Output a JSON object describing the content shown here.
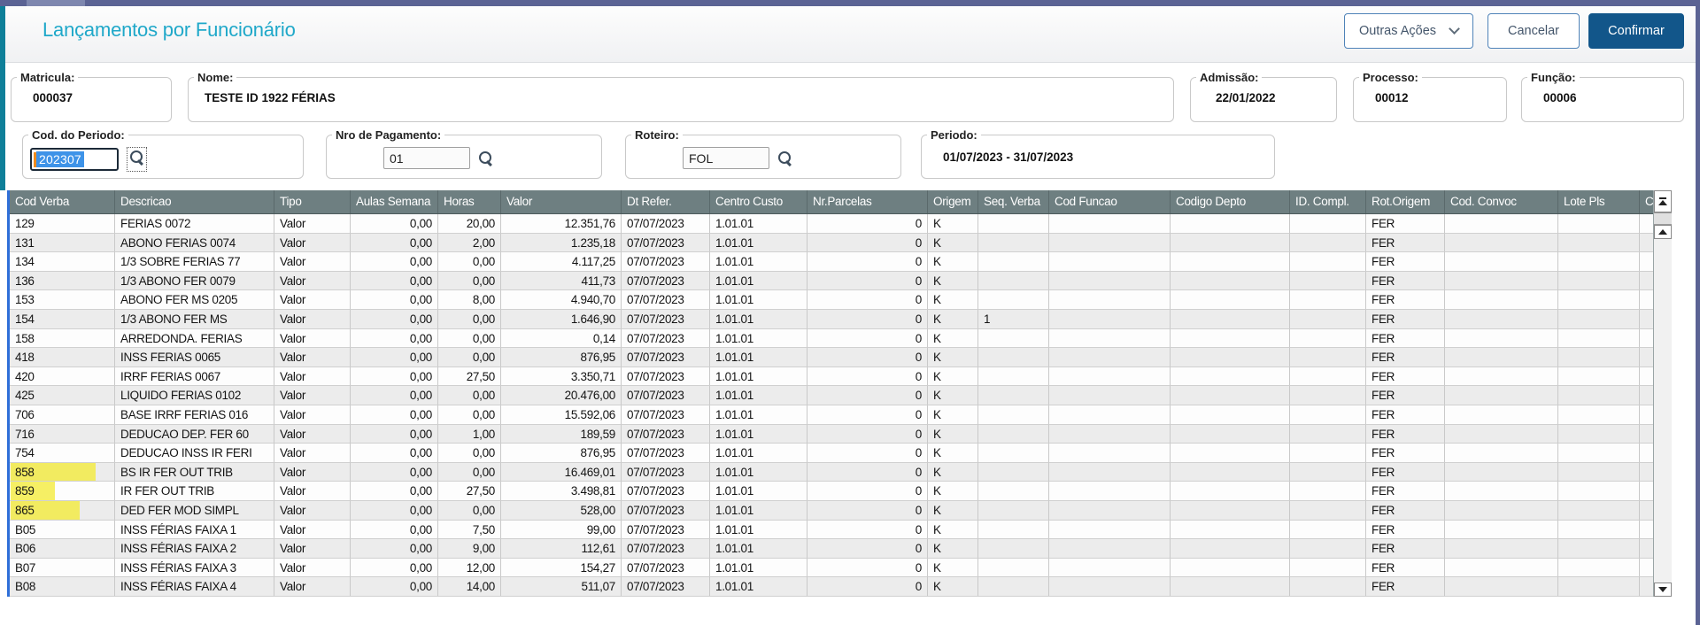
{
  "window": {
    "title": "Lançamentos por Funcionário"
  },
  "header": {
    "actions": [
      {
        "label": "Outras Ações"
      },
      {
        "label": "Cancelar"
      },
      {
        "label": "Confirmar"
      }
    ]
  },
  "form": {
    "row1": [
      {
        "label": "Matricula:",
        "value": "000037"
      },
      {
        "label": "Nome:",
        "value": "TESTE ID 1922 FÉRIAS"
      },
      {
        "label": "Admissão:",
        "value": "22/01/2022"
      },
      {
        "label": "Processo:",
        "value": "00012"
      },
      {
        "label": "Função:",
        "value": "00006"
      }
    ],
    "row2": [
      {
        "label": "Cod. do Periodo:",
        "value": "202307",
        "state": "focused-text-selected"
      },
      {
        "label": "Nro de Pagamento:",
        "value": "01"
      },
      {
        "label": "Roteiro:",
        "value": "FOL"
      },
      {
        "label": "Periodo:",
        "value": "01/07/2023 - 31/07/2023"
      }
    ]
  },
  "table": {
    "columns": [
      "Cod Verba",
      "Descricao",
      "Tipo",
      "Aulas Semana",
      "Horas",
      "Valor",
      "Dt Refer.",
      "Centro Custo",
      "Nr.Parcelas",
      "Origem",
      "Seq. Verba",
      "Cod Funcao",
      "Codigo Depto",
      "ID. Compl.",
      "Rot.Origem",
      "Cod. Convoc",
      "Lote Pls",
      "Co"
    ],
    "row_keys": [
      "cod",
      "desc",
      "tipo",
      "aulas",
      "horas",
      "valor",
      "dt",
      "centro",
      "parcelas",
      "origem",
      "seq",
      "funcao",
      "depto",
      "idcompl",
      "rot",
      "convoc",
      "lote",
      "co"
    ],
    "rows": [
      {
        "cod": "129",
        "desc": "FERIAS 0072",
        "tipo": "Valor",
        "aulas": "0,00",
        "horas": "20,00",
        "valor": "12.351,76",
        "dt": "07/07/2023",
        "centro": "1.01.01",
        "parcelas": "0",
        "origem": "K",
        "seq": "",
        "rot": "FER"
      },
      {
        "cod": "131",
        "desc": "ABONO FERIAS 0074",
        "tipo": "Valor",
        "aulas": "0,00",
        "horas": "2,00",
        "valor": "1.235,18",
        "dt": "07/07/2023",
        "centro": "1.01.01",
        "parcelas": "0",
        "origem": "K",
        "seq": "",
        "rot": "FER"
      },
      {
        "cod": "134",
        "desc": "1/3 SOBRE FERIAS 77",
        "tipo": "Valor",
        "aulas": "0,00",
        "horas": "0,00",
        "valor": "4.117,25",
        "dt": "07/07/2023",
        "centro": "1.01.01",
        "parcelas": "0",
        "origem": "K",
        "seq": "",
        "rot": "FER"
      },
      {
        "cod": "136",
        "desc": "1/3 ABONO FER 0079",
        "tipo": "Valor",
        "aulas": "0,00",
        "horas": "0,00",
        "valor": "411,73",
        "dt": "07/07/2023",
        "centro": "1.01.01",
        "parcelas": "0",
        "origem": "K",
        "seq": "",
        "rot": "FER"
      },
      {
        "cod": "153",
        "desc": "ABONO FER MS 0205",
        "tipo": "Valor",
        "aulas": "0,00",
        "horas": "8,00",
        "valor": "4.940,70",
        "dt": "07/07/2023",
        "centro": "1.01.01",
        "parcelas": "0",
        "origem": "K",
        "seq": "",
        "rot": "FER"
      },
      {
        "cod": "154",
        "desc": "1/3 ABONO FER MS",
        "tipo": "Valor",
        "aulas": "0,00",
        "horas": "0,00",
        "valor": "1.646,90",
        "dt": "07/07/2023",
        "centro": "1.01.01",
        "parcelas": "0",
        "origem": "K",
        "seq": "1",
        "rot": "FER"
      },
      {
        "cod": "158",
        "desc": "ARREDONDA. FERIAS",
        "tipo": "Valor",
        "aulas": "0,00",
        "horas": "0,00",
        "valor": "0,14",
        "dt": "07/07/2023",
        "centro": "1.01.01",
        "parcelas": "0",
        "origem": "K",
        "seq": "",
        "rot": "FER"
      },
      {
        "cod": "418",
        "desc": "INSS FERIAS 0065",
        "tipo": "Valor",
        "aulas": "0,00",
        "horas": "0,00",
        "valor": "876,95",
        "dt": "07/07/2023",
        "centro": "1.01.01",
        "parcelas": "0",
        "origem": "K",
        "seq": "",
        "rot": "FER"
      },
      {
        "cod": "420",
        "desc": "IRRF FERIAS 0067",
        "tipo": "Valor",
        "aulas": "0,00",
        "horas": "27,50",
        "valor": "3.350,71",
        "dt": "07/07/2023",
        "centro": "1.01.01",
        "parcelas": "0",
        "origem": "K",
        "seq": "",
        "rot": "FER"
      },
      {
        "cod": "425",
        "desc": "LIQUIDO FERIAS 0102",
        "tipo": "Valor",
        "aulas": "0,00",
        "horas": "0,00",
        "valor": "20.476,00",
        "dt": "07/07/2023",
        "centro": "1.01.01",
        "parcelas": "0",
        "origem": "K",
        "seq": "",
        "rot": "FER"
      },
      {
        "cod": "706",
        "desc": "BASE IRRF FERIAS 016",
        "tipo": "Valor",
        "aulas": "0,00",
        "horas": "0,00",
        "valor": "15.592,06",
        "dt": "07/07/2023",
        "centro": "1.01.01",
        "parcelas": "0",
        "origem": "K",
        "seq": "",
        "rot": "FER"
      },
      {
        "cod": "716",
        "desc": "DEDUCAO DEP. FER 60",
        "tipo": "Valor",
        "aulas": "0,00",
        "horas": "1,00",
        "valor": "189,59",
        "dt": "07/07/2023",
        "centro": "1.01.01",
        "parcelas": "0",
        "origem": "K",
        "seq": "",
        "rot": "FER"
      },
      {
        "cod": "754",
        "desc": "DEDUCAO INSS IR FERI",
        "tipo": "Valor",
        "aulas": "0,00",
        "horas": "0,00",
        "valor": "876,95",
        "dt": "07/07/2023",
        "centro": "1.01.01",
        "parcelas": "0",
        "origem": "K",
        "seq": "",
        "rot": "FER"
      },
      {
        "cod": "858",
        "desc": "BS IR FER OUT TRIB",
        "tipo": "Valor",
        "aulas": "0,00",
        "horas": "0,00",
        "valor": "16.469,01",
        "dt": "07/07/2023",
        "centro": "1.01.01",
        "parcelas": "0",
        "origem": "K",
        "seq": "",
        "rot": "FER",
        "hl": 96
      },
      {
        "cod": "859",
        "desc": "IR FER OUT TRIB",
        "tipo": "Valor",
        "aulas": "0,00",
        "horas": "27,50",
        "valor": "3.498,81",
        "dt": "07/07/2023",
        "centro": "1.01.01",
        "parcelas": "0",
        "origem": "K",
        "seq": "",
        "rot": "FER",
        "hl": 50
      },
      {
        "cod": "865",
        "desc": "DED FER MOD SIMPL",
        "tipo": "Valor",
        "aulas": "0,00",
        "horas": "0,00",
        "valor": "528,00",
        "dt": "07/07/2023",
        "centro": "1.01.01",
        "parcelas": "0",
        "origem": "K",
        "seq": "",
        "rot": "FER",
        "hl": 78
      },
      {
        "cod": "B05",
        "desc": "INSS FÉRIAS FAIXA 1",
        "tipo": "Valor",
        "aulas": "0,00",
        "horas": "7,50",
        "valor": "99,00",
        "dt": "07/07/2023",
        "centro": "1.01.01",
        "parcelas": "0",
        "origem": "K",
        "seq": "",
        "rot": "FER"
      },
      {
        "cod": "B06",
        "desc": "INSS FÉRIAS FAIXA 2",
        "tipo": "Valor",
        "aulas": "0,00",
        "horas": "9,00",
        "valor": "112,61",
        "dt": "07/07/2023",
        "centro": "1.01.01",
        "parcelas": "0",
        "origem": "K",
        "seq": "",
        "rot": "FER"
      },
      {
        "cod": "B07",
        "desc": "INSS FÉRIAS FAIXA 3",
        "tipo": "Valor",
        "aulas": "0,00",
        "horas": "12,00",
        "valor": "154,27",
        "dt": "07/07/2023",
        "centro": "1.01.01",
        "parcelas": "0",
        "origem": "K",
        "seq": "",
        "rot": "FER"
      },
      {
        "cod": "B08",
        "desc": "INSS FÉRIAS FAIXA 4",
        "tipo": "Valor",
        "aulas": "0,00",
        "horas": "14,00",
        "valor": "511,07",
        "dt": "07/07/2023",
        "centro": "1.01.01",
        "parcelas": "0",
        "origem": "K",
        "seq": "",
        "rot": "FER"
      }
    ],
    "highlighted_codes": [
      "858",
      "859",
      "865"
    ]
  },
  "icons": {
    "search": "magnifier-glass",
    "chevron_down": "∨",
    "scroll_to_top": "▲ with bar",
    "scroll_up": "▲",
    "scroll_down": "▼"
  },
  "colors": {
    "topbar": "#5b6394",
    "topbar-light": "#7e87af",
    "teal": "#0e7f99",
    "title": "#1fa8c9",
    "btn-border": "#4f83b8",
    "btn-text": "#44566b",
    "confirm-bg": "#12568a",
    "header-bg": "#6e7f81",
    "row-alt": "#ececec",
    "grid-blue": "#2f6fd8",
    "selection": "#3e93e8",
    "caret": "#ef8b1c",
    "highlight": "#f4eb3d"
  }
}
